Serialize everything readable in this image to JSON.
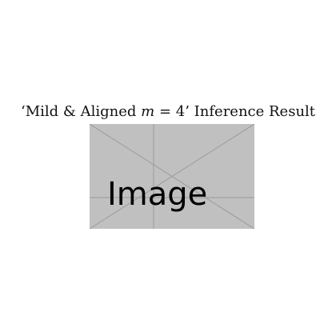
{
  "caption": {
    "open_quote": "‘",
    "before_math": "Mild & Aligned ",
    "math": "m",
    "after_math": " = 4",
    "close_quote": "’",
    "suffix": " Inference Result"
  },
  "placeholder": {
    "label": "Image",
    "background_color": "#c0c0c0",
    "line_color": "#9a9a9a"
  }
}
